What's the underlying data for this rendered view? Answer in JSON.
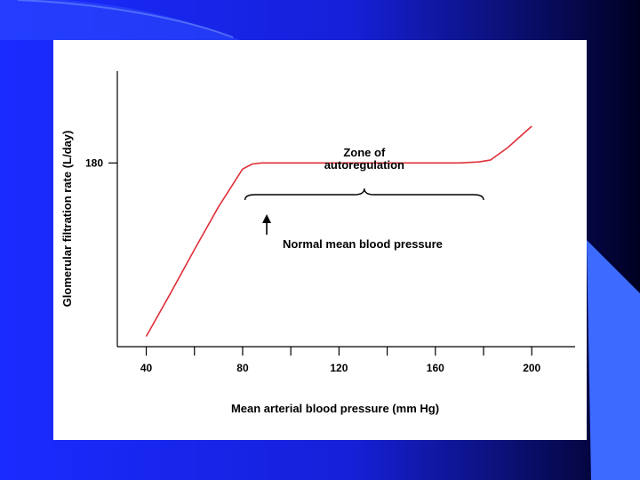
{
  "colors": {
    "slide_blue": "#1a2bff",
    "slide_dark": "#000022",
    "accent_light_blue": "#3d6bff",
    "curve": "#e0303a",
    "ink": "#000000"
  },
  "chart_data": {
    "type": "line",
    "title": "",
    "xlabel": "Mean arterial blood pressure (mm Hg)",
    "ylabel": "Glomerular filtration rate (L/day)",
    "x_ticks": [
      40,
      60,
      80,
      100,
      120,
      140,
      160,
      180,
      200
    ],
    "x_tick_labels": [
      "40",
      "80",
      "120",
      "160",
      "200"
    ],
    "y_ticks": [
      180
    ],
    "y_tick_labels": [
      "180"
    ],
    "xlim": [
      28,
      218
    ],
    "ylim": [
      0,
      270
    ],
    "grid": false,
    "series": [
      {
        "x": [
          40,
          50,
          60,
          70,
          80,
          84,
          88,
          95,
          120,
          150,
          170,
          178,
          183,
          190,
          200
        ],
        "y": [
          10,
          52,
          95,
          137,
          174,
          179,
          180,
          180,
          180,
          180,
          180,
          181,
          183,
          195,
          216
        ]
      }
    ],
    "annotations": {
      "zone_label_line1": "Zone of",
      "zone_label_line2": "autoregulation",
      "zone_range": [
        81,
        180
      ],
      "normal_label": "Normal mean blood pressure",
      "normal_x": 90
    }
  }
}
